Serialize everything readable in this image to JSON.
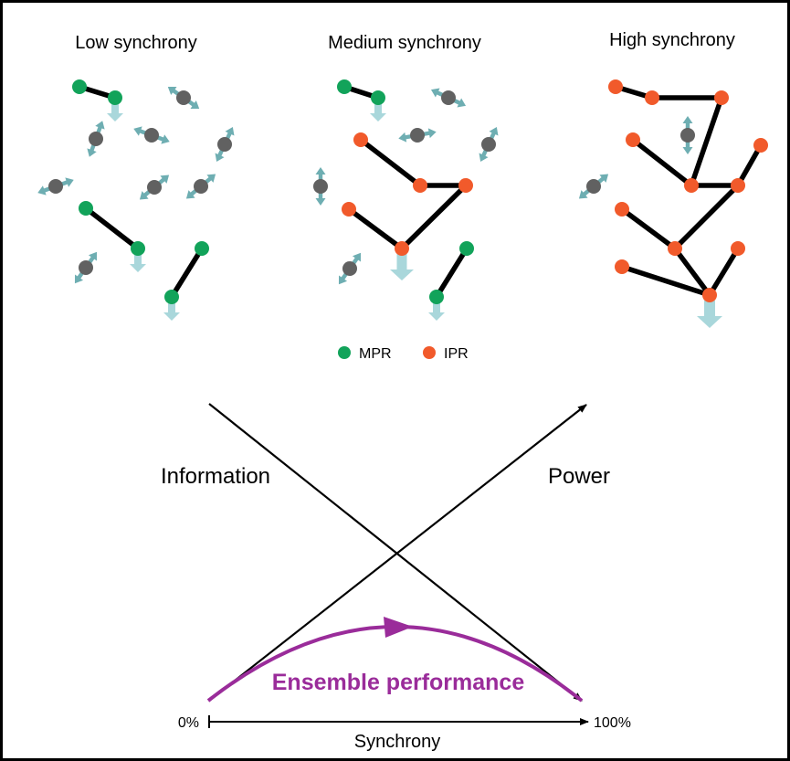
{
  "panels": [
    {
      "title": "Low synchrony"
    },
    {
      "title": "Medium synchrony"
    },
    {
      "title": "High synchrony"
    }
  ],
  "legend": [
    {
      "label": "MPR",
      "color": "#12a35a"
    },
    {
      "label": "IPR",
      "color": "#f15a2b"
    }
  ],
  "colors": {
    "mpr": "#12a35a",
    "ipr": "#f15a2b",
    "neutral": "#616161",
    "arrow": "#6eaeb2",
    "big_arrow": "#a9d7db",
    "performance": "#9a2c9a",
    "line": "#000000"
  },
  "lines": {
    "information": "Information",
    "power": "Power"
  },
  "axis": {
    "label": "Synchrony",
    "min": "0%",
    "max": "100%"
  },
  "curve": {
    "label": "Ensemble performance"
  }
}
